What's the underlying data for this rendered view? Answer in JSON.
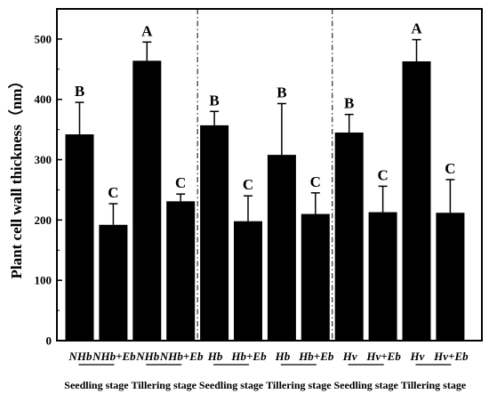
{
  "chart_data": {
    "type": "bar",
    "title": "",
    "xlabel": "",
    "ylabel": "Plant cell wall thickness（nm）",
    "ylim": [
      0,
      550
    ],
    "yticks": [
      0,
      100,
      200,
      300,
      400,
      500
    ],
    "grid": false,
    "legend": "none",
    "bar_color": "#000000",
    "categories": [
      "NHb",
      "NHb+Eb",
      "NHb",
      "NHb+Eb",
      "Hb",
      "Hb+Eb",
      "Hb",
      "Hb+Eb",
      "Hv",
      "Hv+Eb",
      "Hv",
      "Hv+Eb"
    ],
    "values": [
      342,
      192,
      464,
      231,
      357,
      198,
      308,
      210,
      345,
      213,
      463,
      212
    ],
    "errors": [
      53,
      35,
      31,
      12,
      23,
      42,
      85,
      35,
      30,
      43,
      36,
      55
    ],
    "letters": [
      "B",
      "C",
      "A",
      "C",
      "B",
      "C",
      "B",
      "C",
      "B",
      "C",
      "A",
      "C"
    ],
    "stages": [
      "Seedling stage",
      "Tillering stage",
      "Seedling stage",
      "Tillering stage",
      "Seedling stage",
      "Tillering stage"
    ],
    "group_dividers_after": [
      4,
      8
    ]
  }
}
